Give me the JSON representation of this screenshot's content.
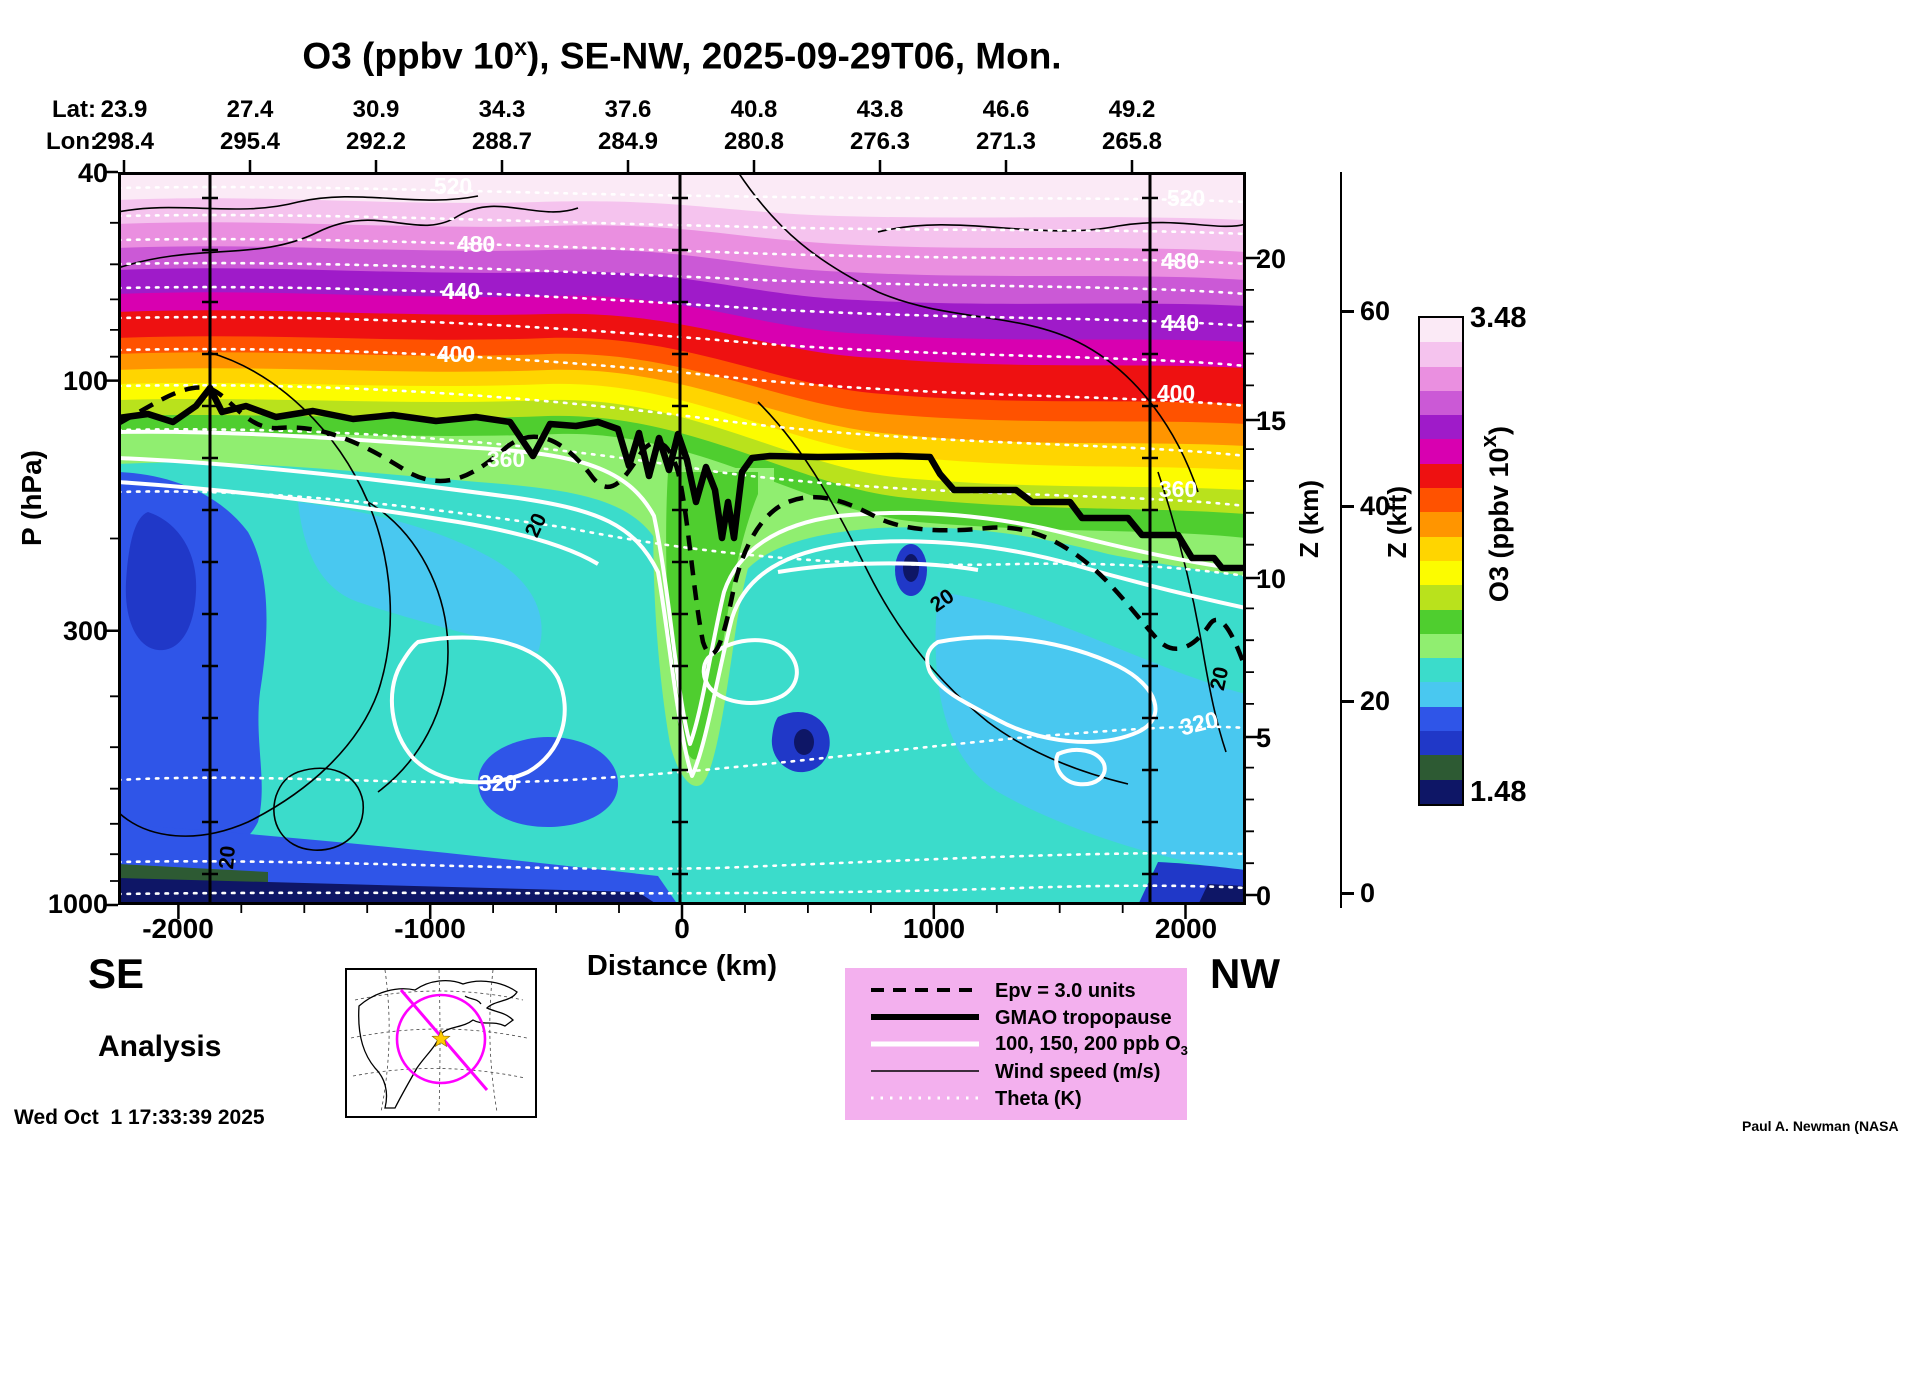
{
  "title": {
    "pre": "O3 (ppbv 10",
    "sup": "x",
    "post": "), SE-NW, 2025-09-29T06, Mon."
  },
  "header": {
    "lat_label": "Lat:",
    "lon_label": "Lon:",
    "lat_values": [
      "23.9",
      "27.4",
      "30.9",
      "34.3",
      "37.6",
      "40.8",
      "43.8",
      "46.6",
      "49.2"
    ],
    "lon_values": [
      "298.4",
      "295.4",
      "292.2",
      "288.7",
      "284.9",
      "280.8",
      "276.3",
      "271.3",
      "265.8"
    ]
  },
  "axes": {
    "pressure": {
      "label": "P (hPa)",
      "ticks": [
        "40",
        "100",
        "300",
        "1000"
      ]
    },
    "distance": {
      "label": "Distance (km)",
      "ticks": [
        "-2000",
        "-1000",
        "0",
        "1000",
        "2000"
      ]
    },
    "z_km": {
      "label": "Z (km)",
      "ticks": [
        "20",
        "15",
        "10",
        "5",
        "0"
      ]
    },
    "z_kft": {
      "label": "Z (kft)",
      "ticks": [
        "60",
        "40",
        "20",
        "0"
      ]
    }
  },
  "colorbar": {
    "label_pre": "O3 (ppbv 10",
    "label_sup": "x",
    "label_post": ")",
    "max": "3.48",
    "min": "1.48",
    "colors": [
      "#fbeaf6",
      "#f5c3ee",
      "#ea8fe0",
      "#cb59d6",
      "#9f1bc9",
      "#d800b0",
      "#ee1111",
      "#ff5200",
      "#ff9500",
      "#ffd500",
      "#fcfc00",
      "#b9e21c",
      "#4fce2f",
      "#90ee70",
      "#3bdccb",
      "#49c8f0",
      "#2f55e8",
      "#2038c8",
      "#2d5a33",
      "#0e1666"
    ]
  },
  "plot_labels": {
    "theta_520": "520",
    "theta_480": "480",
    "theta_440": "440",
    "theta_400": "400",
    "theta_360": "360",
    "theta_320": "320",
    "wind_20": "20"
  },
  "corners": {
    "se": "SE",
    "nw": "NW"
  },
  "analysis": "Analysis",
  "footer": {
    "timestamp": "Wed Oct  1 17:33:39 2025",
    "credit": "Paul A. Newman (NASA"
  },
  "legend": {
    "items": [
      {
        "label": "Epv = 3.0 units"
      },
      {
        "label": "GMAO tropopause"
      },
      {
        "label_pre": "100, 150, 200 ppb O",
        "label_sub": "3"
      },
      {
        "label": "Wind speed (m/s)"
      },
      {
        "label": "Theta (K)"
      }
    ]
  },
  "chart_data": {
    "type": "heatmap",
    "subtype": "filled-contour vertical cross-section",
    "title": "O3 (ppbv 10^x), SE-NW, 2025-09-29T06, Mon.",
    "x": {
      "label": "Distance (km)",
      "range": [
        -2240,
        2240
      ],
      "ticks": [
        -2000,
        -1000,
        0,
        1000,
        2000
      ]
    },
    "y": {
      "label": "P (hPa)",
      "scale": "log",
      "range": [
        40,
        1000
      ],
      "ticks": [
        40,
        100,
        300,
        1000
      ]
    },
    "y2": {
      "label": "Z (km)",
      "ticks": [
        0,
        5,
        10,
        15,
        20
      ]
    },
    "y3": {
      "label": "Z (kft)",
      "ticks": [
        0,
        20,
        40,
        60
      ]
    },
    "top_axis": {
      "lat": [
        23.9,
        27.4,
        30.9,
        34.3,
        37.6,
        40.8,
        43.8,
        46.6,
        49.2
      ],
      "lon": [
        298.4,
        295.4,
        292.2,
        288.7,
        284.9,
        280.8,
        276.3,
        271.3,
        265.8
      ]
    },
    "colorbar": {
      "quantity": "O3 (ppbv 10^x)",
      "min": 1.48,
      "max": 3.48,
      "scale": "log10 of ppbv"
    },
    "theta_contours_K": {
      "labeled_levels": [
        320,
        360,
        400,
        440,
        480,
        520
      ],
      "style": "white dotted"
    },
    "o3_contours_ppb": [
      100,
      150,
      200
    ],
    "epv_contour_units": 3.0,
    "wind_speed_contours_ms": [
      20
    ],
    "waypoint_lines_km": [
      -1865,
      0,
      1865
    ],
    "tropopause_profile_approx_km_hPa": [
      [
        -2240,
        120
      ],
      [
        -2000,
        118
      ],
      [
        -1700,
        122
      ],
      [
        -1400,
        120
      ],
      [
        -1100,
        123
      ],
      [
        -800,
        126
      ],
      [
        -500,
        128
      ],
      [
        -250,
        150
      ],
      [
        -100,
        138
      ],
      [
        0,
        150
      ],
      [
        100,
        230
      ],
      [
        160,
        280
      ],
      [
        220,
        165
      ],
      [
        300,
        142
      ],
      [
        600,
        142
      ],
      [
        850,
        150
      ],
      [
        1000,
        152
      ],
      [
        1200,
        162
      ],
      [
        1400,
        172
      ],
      [
        1600,
        186
      ],
      [
        1800,
        200
      ],
      [
        2000,
        215
      ],
      [
        2240,
        222
      ]
    ],
    "section_orientation": {
      "left": "SE",
      "right": "NW"
    },
    "product": "Analysis"
  }
}
